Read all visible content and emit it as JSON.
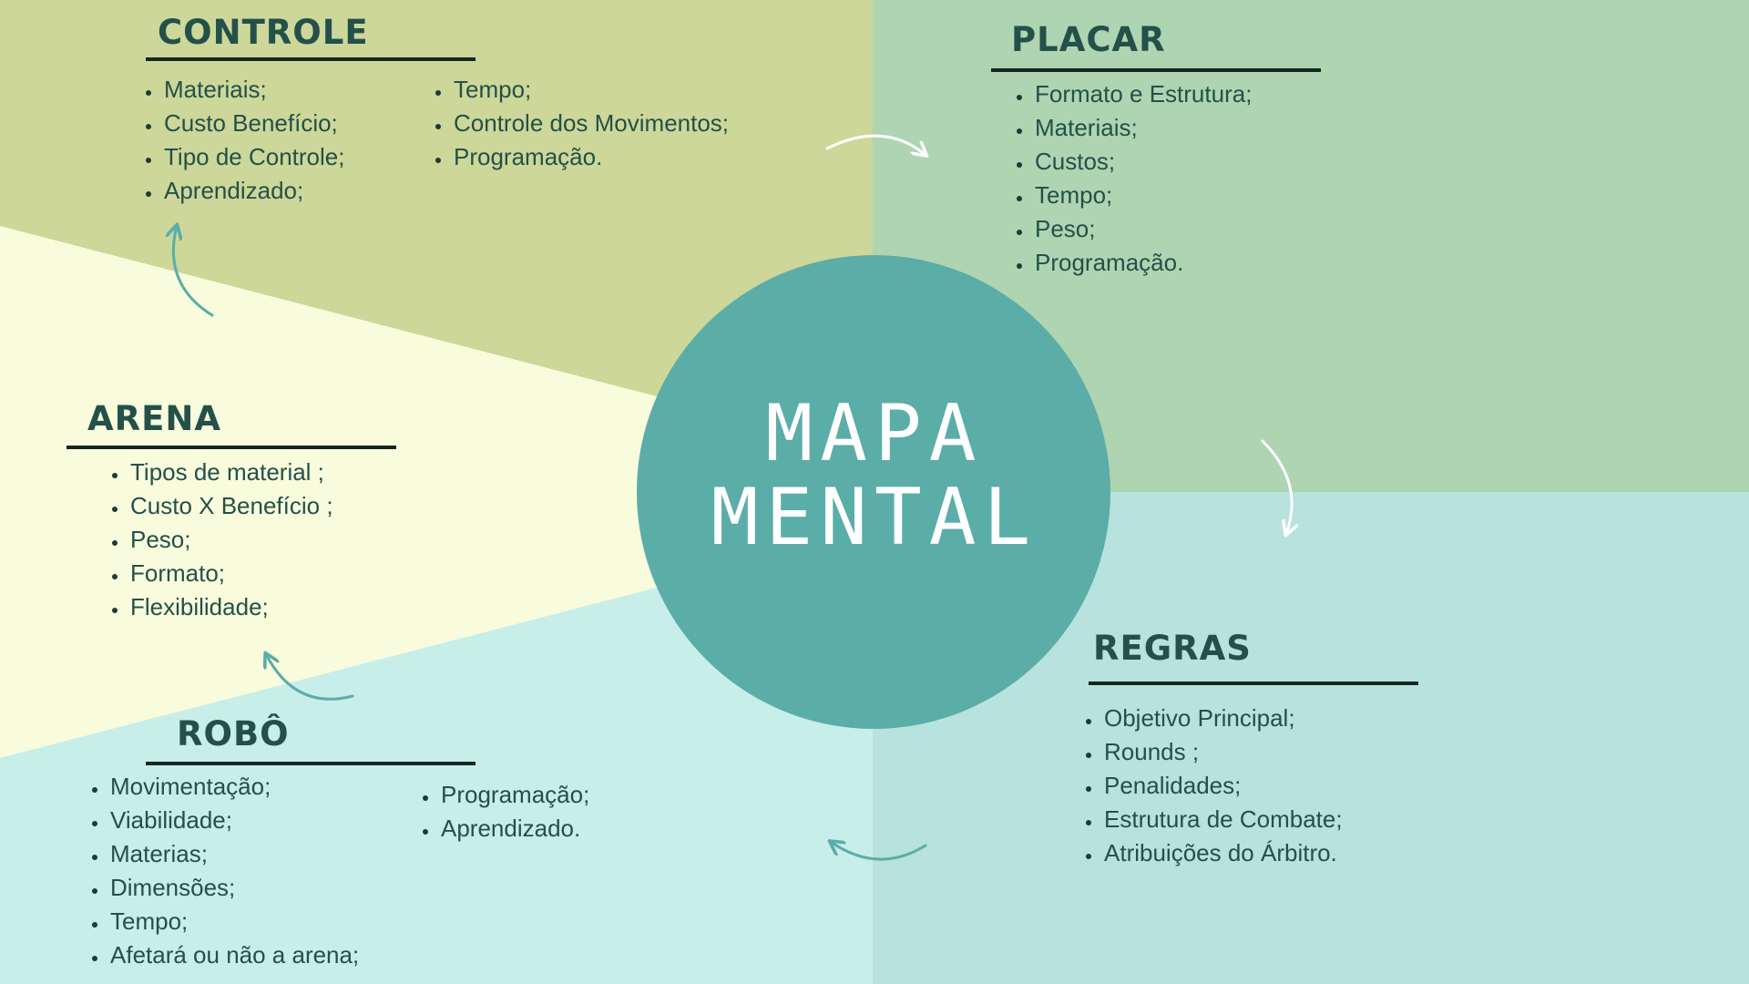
{
  "center": {
    "line1": "MAPA",
    "line2": "MENTAL"
  },
  "colors": {
    "controle_bg": "#ccd799",
    "placar_bg": "#aed4b1",
    "arena_bg": "#f8fcdc",
    "robo_bg": "#c8eeea",
    "regras_bg": "#b8e2dd",
    "circle": "#5bada8",
    "heading": "#24504a",
    "arrow_teal": "#5bada8",
    "arrow_white": "#ffffff"
  },
  "controle": {
    "title": "CONTROLE",
    "col1": [
      "Materiais;",
      "Custo Benefício;",
      "Tipo de Controle;",
      "Aprendizado;"
    ],
    "col2": [
      "Tempo;",
      "Controle dos Movimentos;",
      "Programação."
    ]
  },
  "placar": {
    "title": "PLACAR",
    "items": [
      "Formato e Estrutura;",
      "Materiais;",
      "Custos;",
      "Tempo;",
      "Peso;",
      "Programação."
    ]
  },
  "arena": {
    "title": "ARENA",
    "items": [
      "Tipos de material ;",
      "Custo X Benefício ;",
      "Peso;",
      "Formato;",
      "Flexibilidade;"
    ]
  },
  "robo": {
    "title": "ROBÔ",
    "col1": [
      "Movimentação;",
      "Viabilidade;",
      "Materias;",
      "Dimensões;",
      "Tempo;",
      "Afetará ou não a arena;"
    ],
    "col2": [
      "Programação;",
      "Aprendizado."
    ]
  },
  "regras": {
    "title": "REGRAS",
    "items": [
      "Objetivo Principal;",
      "Rounds ;",
      "Penalidades;",
      "Estrutura de Combate;",
      "Atribuições do Árbitro."
    ]
  },
  "arrows": [
    {
      "from": "controle",
      "to": "placar",
      "color": "white"
    },
    {
      "from": "placar",
      "to": "regras",
      "color": "white"
    },
    {
      "from": "regras",
      "to": "robo",
      "color": "teal"
    },
    {
      "from": "robo",
      "to": "arena",
      "color": "teal"
    },
    {
      "from": "arena",
      "to": "controle",
      "color": "teal"
    }
  ]
}
